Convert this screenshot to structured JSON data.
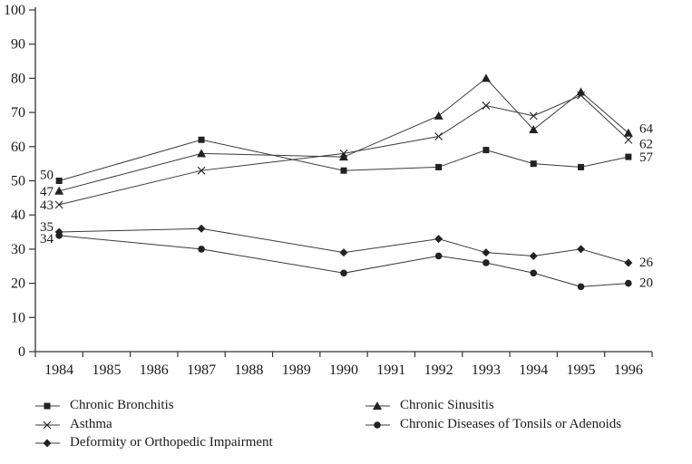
{
  "chart_data": {
    "type": "line",
    "title": "",
    "xlabel": "",
    "ylabel": "",
    "ylim": [
      0,
      100
    ],
    "ytick_step": 10,
    "ytick_labels": [
      "0",
      "10",
      "20",
      "30",
      "40",
      "50",
      "60",
      "70",
      "80",
      "90",
      "100"
    ],
    "xtick_labels": [
      "1984",
      "1985",
      "1986",
      "1987",
      "1988",
      "1989",
      "1990",
      "1991",
      "1992",
      "1993",
      "1994",
      "1995",
      "1996"
    ],
    "x": [
      1984,
      1987,
      1990,
      1992,
      1993,
      1994,
      1995,
      1996
    ],
    "grid": "off",
    "legend_position": "below",
    "line_color": "#3a3a3a",
    "marker_color": "#222222",
    "series": [
      {
        "name": "Chronic Bronchitis",
        "marker": "square",
        "values": [
          50,
          62,
          53,
          54,
          59,
          55,
          54,
          57
        ],
        "start_label": "50",
        "end_label": "57"
      },
      {
        "name": "Chronic Sinusitis",
        "marker": "triangle",
        "values": [
          47,
          58,
          57,
          69,
          80,
          65,
          76,
          64
        ],
        "start_label": "47",
        "end_label": "64"
      },
      {
        "name": "Asthma",
        "marker": "x",
        "values": [
          43,
          53,
          58,
          63,
          72,
          69,
          75,
          62
        ],
        "start_label": "43",
        "end_label": "62"
      },
      {
        "name": "Chronic Diseases of Tonsils or Adenoids",
        "marker": "circle",
        "values": [
          34,
          30,
          23,
          28,
          26,
          23,
          19,
          20
        ],
        "start_label": "34",
        "end_label": "20"
      },
      {
        "name": "Deformity or Orthopedic Impairment",
        "marker": "diamond",
        "values": [
          35,
          36,
          29,
          33,
          29,
          28,
          30,
          26
        ],
        "start_label": "35",
        "end_label": "26"
      }
    ]
  }
}
